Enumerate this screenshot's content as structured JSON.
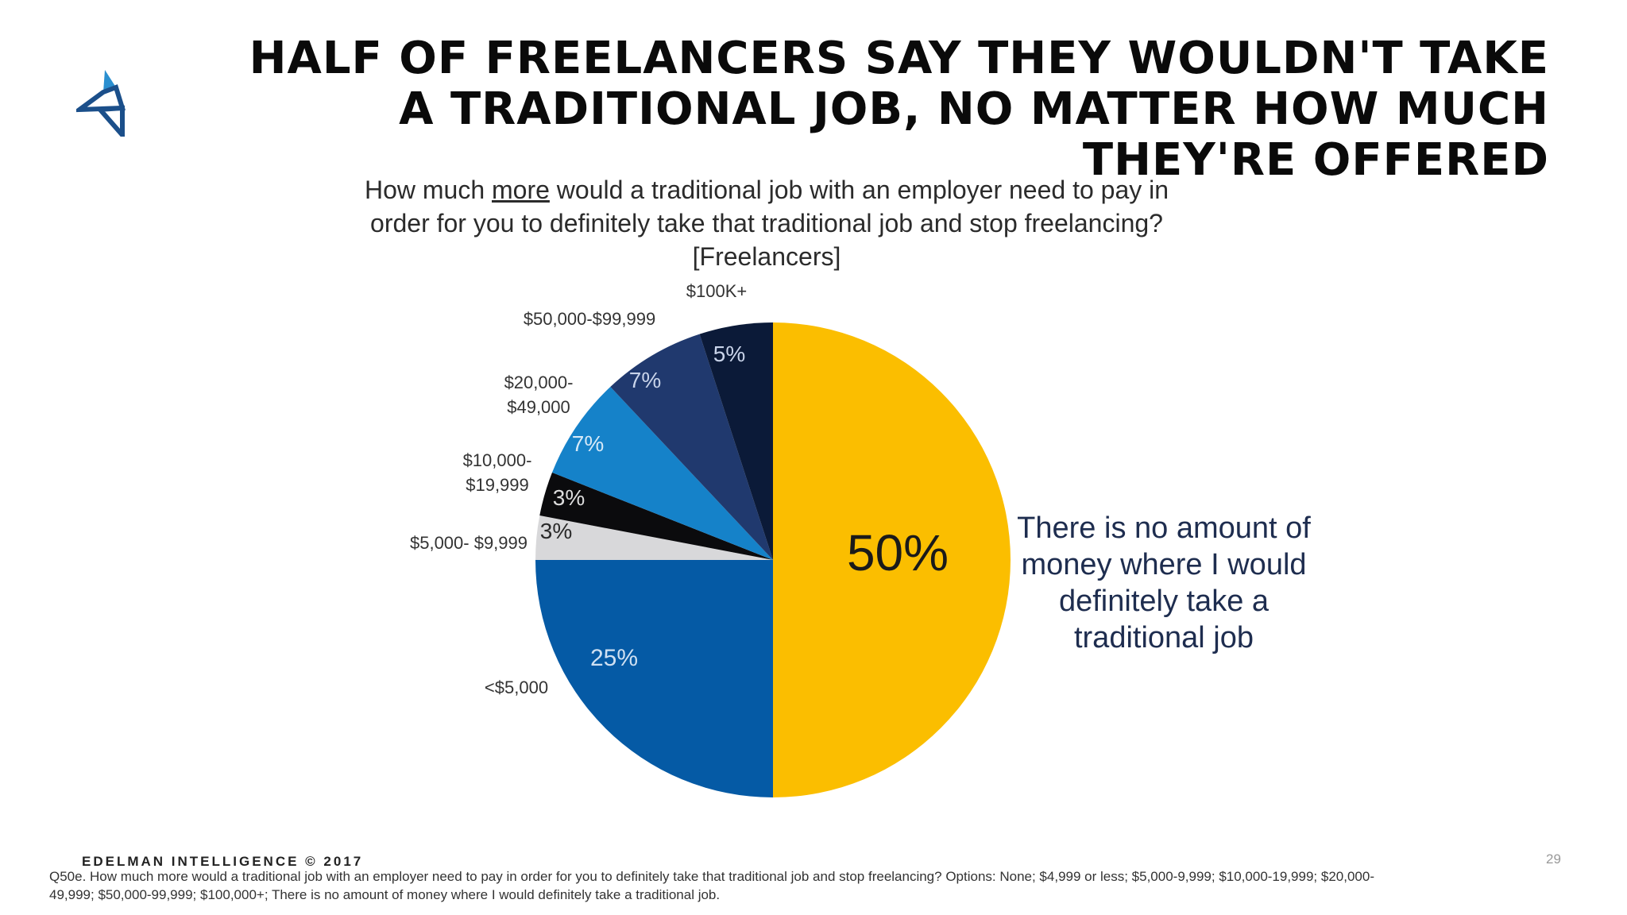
{
  "title": "HALF OF FREELANCERS SAY THEY WOULDN'T TAKE A TRADITIONAL JOB, NO MATTER HOW MUCH THEY'RE OFFERED",
  "subtitle": {
    "part1": "How much ",
    "emphasis": "more",
    "part2": " would a traditional job with an employer need to pay in order for you to definitely take that traditional job and stop freelancing? [Freelancers]"
  },
  "callout": "There is no amount of money where I would definitely take a traditional job",
  "footer": {
    "brand": "EDELMAN INTELLIGENCE © 2017",
    "page": "29",
    "footnote": "Q50e. How much more would a traditional job with an employer need to pay in order for you to definitely take that traditional job and stop freelancing?  Options: None; $4,999 or less; $5,000-9,999; $10,000-19,999; $20,000-49,999; $50,000-99,999; $100,000+; There is no amount of money where I would definitely take a traditional job."
  },
  "colors": {
    "logo_light": "#2a8fd0",
    "logo_dark": "#1b4f8a"
  },
  "chart_data": {
    "type": "pie",
    "start": "12 o'clock",
    "direction": "clockwise",
    "slices": [
      {
        "label": "There is no amount of money where I would definitely take a traditional job",
        "value": 50,
        "value_label": "50%",
        "color": "#fbbe00",
        "label_color": "#1a1a1a"
      },
      {
        "label": "<$5,000",
        "value": 25,
        "value_label": "25%",
        "color": "#055aa5",
        "label_color": "#cfe0f2"
      },
      {
        "label": "$5,000- $9,999",
        "value": 3,
        "value_label": "3%",
        "color": "#d8d8da",
        "label_color": "#2a2a2a"
      },
      {
        "label": "$10,000- $19,999",
        "value": 3,
        "value_label": "3%",
        "color": "#0b0b0d",
        "label_color": "#dddddd"
      },
      {
        "label": "$20,000- $49,000",
        "value": 7,
        "value_label": "7%",
        "color": "#1582c9",
        "label_color": "#d6e9f7"
      },
      {
        "label": "$50,000-$99,999",
        "value": 7,
        "value_label": "7%",
        "color": "#20396e",
        "label_color": "#c9d4ea"
      },
      {
        "label": "$100K+",
        "value": 5,
        "value_label": "5%",
        "color": "#0b1a38",
        "label_color": "#c9d4ea"
      }
    ]
  }
}
